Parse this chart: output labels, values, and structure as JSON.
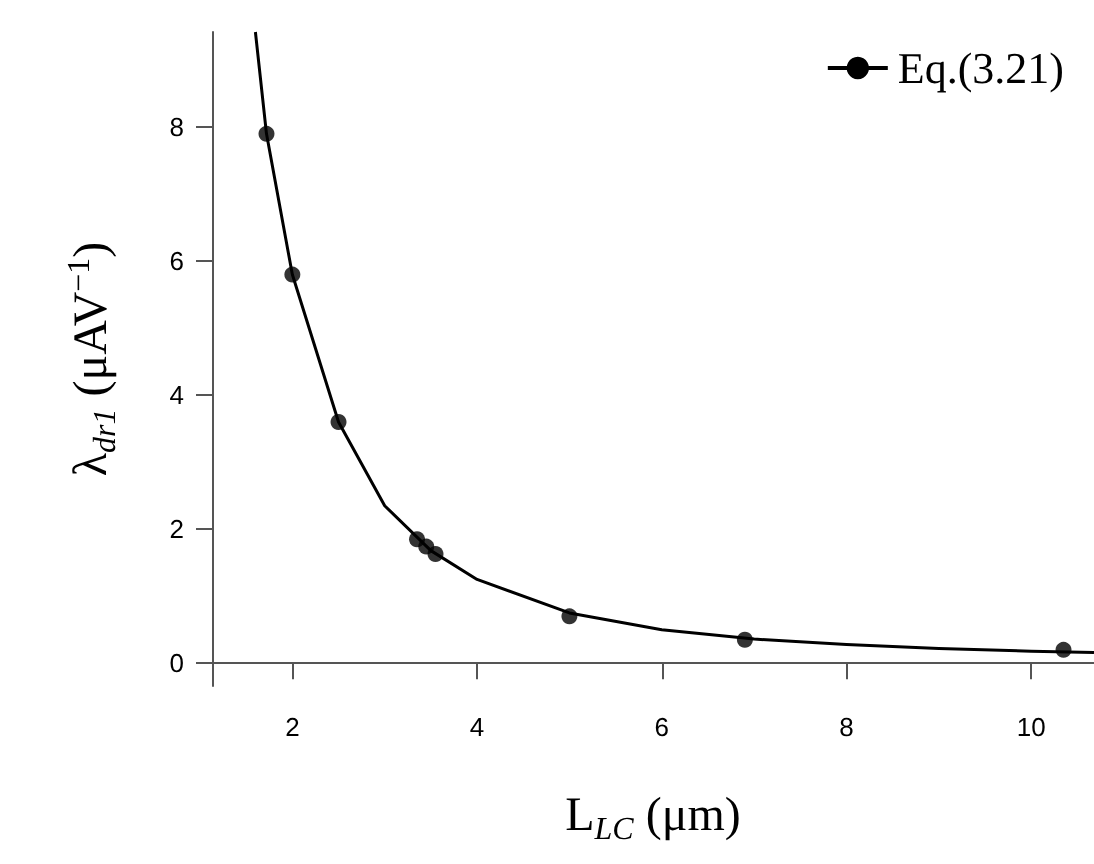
{
  "chart_data": {
    "type": "scatter",
    "xlabel": "L$_{LC}$ (μm)",
    "ylabel": "λ$_{dr1}$ (μAV$^{−1}$)",
    "xlim": [
      1.13,
      10.68
    ],
    "xticks": [
      2,
      4,
      6,
      8,
      10
    ],
    "ylim": [
      -0.34,
      9.42
    ],
    "yticks": [
      0,
      2,
      4,
      6,
      8
    ],
    "grid": false,
    "legend": "top right",
    "series": [
      {
        "color": "#000000",
        "marker": "circle",
        "x": [
          1.72,
          2.0,
          2.5,
          3.35,
          3.45,
          3.55,
          5.0,
          6.9,
          10.35
        ],
        "values": [
          7.9,
          5.8,
          3.6,
          1.85,
          1.74,
          1.63,
          0.7,
          0.35,
          0.2
        ]
      },
      {
        "type": "line",
        "name": "Eq.(3.21)",
        "color": "#000000",
        "marker": "none",
        "line_style": "solid",
        "x": [
          1.6,
          1.72,
          2.0,
          2.5,
          3.0,
          3.5,
          4.0,
          5.0,
          6.0,
          7.0,
          8.0,
          9.0,
          10.0,
          10.68
        ],
        "values": [
          9.42,
          7.9,
          5.8,
          3.6,
          2.35,
          1.68,
          1.25,
          0.75,
          0.5,
          0.36,
          0.28,
          0.22,
          0.18,
          0.16
        ]
      }
    ]
  }
}
